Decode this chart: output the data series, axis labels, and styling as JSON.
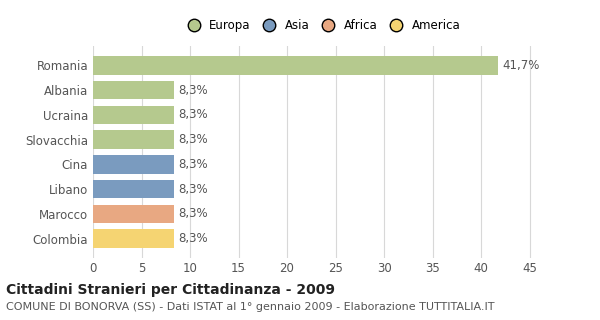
{
  "categories": [
    "Romania",
    "Albania",
    "Ucraina",
    "Slovacchia",
    "Cina",
    "Libano",
    "Marocco",
    "Colombia"
  ],
  "values": [
    41.7,
    8.3,
    8.3,
    8.3,
    8.3,
    8.3,
    8.3,
    8.3
  ],
  "labels": [
    "41,7%",
    "8,3%",
    "8,3%",
    "8,3%",
    "8,3%",
    "8,3%",
    "8,3%",
    "8,3%"
  ],
  "colors": [
    "#b5c98e",
    "#b5c98e",
    "#b5c98e",
    "#b5c98e",
    "#7a9bbf",
    "#7a9bbf",
    "#e8a882",
    "#f5d472"
  ],
  "legend": [
    {
      "label": "Europa",
      "color": "#b5c98e"
    },
    {
      "label": "Asia",
      "color": "#7a9bbf"
    },
    {
      "label": "Africa",
      "color": "#e8a882"
    },
    {
      "label": "America",
      "color": "#f5d472"
    }
  ],
  "xlim": [
    0,
    47
  ],
  "xticks": [
    0,
    5,
    10,
    15,
    20,
    25,
    30,
    35,
    40,
    45
  ],
  "title_bold": "Cittadini Stranieri per Cittadinanza - 2009",
  "subtitle": "COMUNE DI BONORVA (SS) - Dati ISTAT al 1° gennaio 2009 - Elaborazione TUTTITALIA.IT",
  "background_color": "#ffffff",
  "grid_color": "#d8d8d8",
  "bar_height": 0.75,
  "label_fontsize": 8.5,
  "tick_fontsize": 8.5,
  "title_fontsize": 10,
  "subtitle_fontsize": 8
}
